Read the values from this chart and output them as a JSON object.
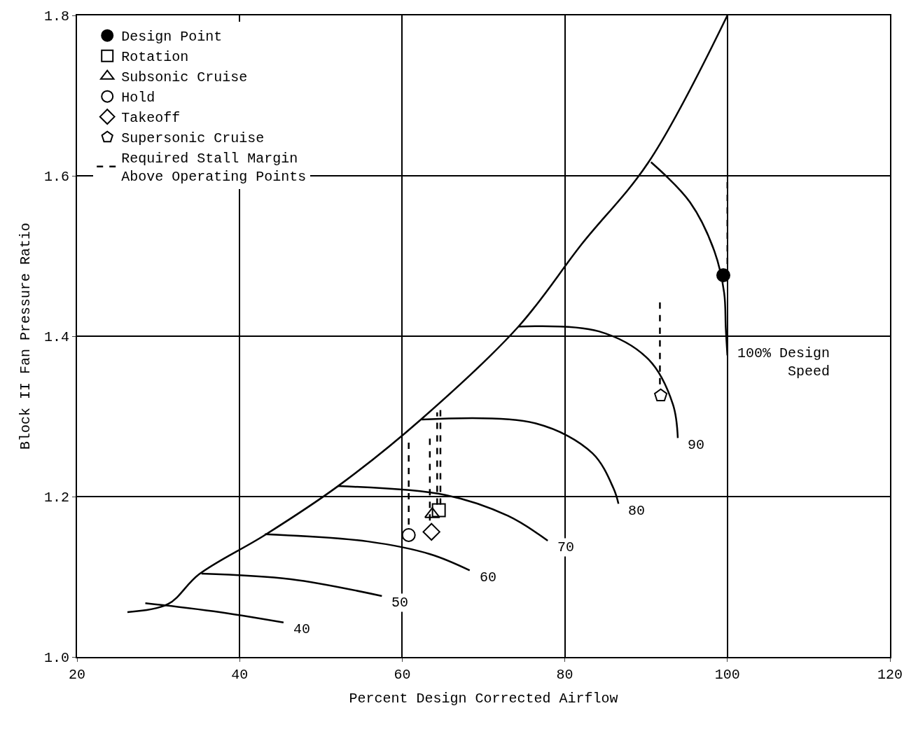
{
  "chart_data": {
    "type": "line",
    "xlabel": "Percent Design Corrected Airflow",
    "ylabel": "Block II Fan Pressure Ratio",
    "xlim": [
      20,
      120
    ],
    "xticks": [
      20,
      40,
      60,
      80,
      100,
      120
    ],
    "ylim": [
      1.0,
      1.8
    ],
    "yticks": [
      {
        "value": 1.0,
        "label": "1.0"
      },
      1.2,
      1.4,
      1.6,
      1.8
    ],
    "grid": true,
    "legend": "top left",
    "line_style": "solid",
    "series": [
      {
        "color": "#000000",
        "x": [
          26.2,
          31.2,
          35,
          43.1,
          52.1,
          62.4,
          74.3,
          82.1,
          90.3,
          100
        ],
        "values": [
          1.056,
          1.066,
          1.103,
          1.152,
          1.213,
          1.297,
          1.412,
          1.515,
          1.617,
          1.8
        ]
      },
      {
        "color": "#000000",
        "x": [
          28.4,
          36.8,
          45.4
        ],
        "values": [
          1.067,
          1.057,
          1.043
        ]
      },
      {
        "color": "#000000",
        "x": [
          35.3,
          46.3,
          57.5
        ],
        "values": [
          1.104,
          1.097,
          1.076
        ]
      },
      {
        "color": "#000000",
        "x": [
          43.1,
          55.8,
          63.5,
          68.3
        ],
        "values": [
          1.153,
          1.144,
          1.128,
          1.108
        ]
      },
      {
        "color": "#000000",
        "x": [
          52.1,
          65.3,
          73,
          77.9
        ],
        "values": [
          1.213,
          1.202,
          1.176,
          1.145
        ]
      },
      {
        "color": "#000000",
        "x": [
          62.4,
          76.5,
          83.4,
          86,
          86.6
        ],
        "values": [
          1.296,
          1.291,
          1.254,
          1.21,
          1.191
        ]
      },
      {
        "color": "#000000",
        "x": [
          74.3,
          84.2,
          90.3,
          93.3,
          93.9
        ],
        "values": [
          1.412,
          1.406,
          1.371,
          1.315,
          1.273
        ]
      },
      {
        "color": "#000000",
        "x": [
          90.6,
          95.4,
          98.4,
          99.6,
          99.8,
          100
        ],
        "values": [
          1.617,
          1.567,
          1.506,
          1.454,
          1.41,
          1.376
        ]
      },
      {
        "type": "scatter",
        "name": "Design Point",
        "color": "#000000",
        "marker": "cross",
        "x": [
          99.5
        ],
        "values": [
          1.476
        ]
      },
      {
        "type": "scatter",
        "name": "Rotation",
        "color": "#000000",
        "marker": "square",
        "x": [
          64.5
        ],
        "values": [
          1.183
        ]
      },
      {
        "type": "scatter",
        "name": "Subsonic Cruise",
        "color": "#000000",
        "marker": "triangle",
        "x": [
          63.7
        ],
        "values": [
          1.178
        ]
      },
      {
        "type": "scatter",
        "name": "Hold",
        "color": "#000000",
        "marker": "circle",
        "x": [
          60.8
        ],
        "values": [
          1.152
        ]
      },
      {
        "type": "scatter",
        "name": "Takeoff",
        "color": "#000000",
        "marker": "diamond",
        "x": [
          63.6
        ],
        "values": [
          1.156
        ]
      },
      {
        "type": "scatter",
        "name": "Supersonic Cruise",
        "color": "#000000",
        "x": [
          91.8
        ],
        "values": [
          1.326
        ]
      },
      {
        "name": "Required Stall Margin\nAbove Operating Points",
        "color": "#000000",
        "line_style": "dashed",
        "x": [
          60.8,
          60.8,
          null,
          63.4,
          63.4,
          null,
          64.3,
          64.3,
          null,
          64.7,
          64.7,
          null,
          91.7,
          91.7,
          null,
          100,
          100
        ],
        "values": [
          1.165,
          1.271,
          null,
          1.17,
          1.275,
          null,
          1.19,
          1.305,
          null,
          1.19,
          1.31,
          null,
          1.34,
          1.443,
          null,
          1.49,
          1.597
        ]
      }
    ],
    "annotations": [
      {
        "text": "40",
        "x": 45.4,
        "y": 1.043
      },
      {
        "text": "50",
        "x": 57.5,
        "y": 1.076
      },
      {
        "text": "60",
        "x": 68.3,
        "y": 1.108
      },
      {
        "text": "70",
        "x": 77.9,
        "y": 1.145
      },
      {
        "text": "80",
        "x": 86.6,
        "y": 1.191
      },
      {
        "text": "90",
        "x": 93.9,
        "y": 1.273
      },
      {
        "text": "100% Design\nSpeed",
        "x": 100,
        "y": 1.376
      }
    ]
  }
}
